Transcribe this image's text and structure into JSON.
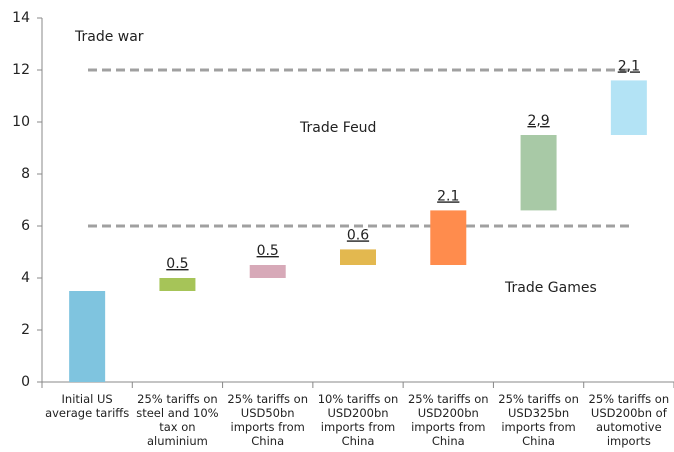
{
  "chart_data": {
    "type": "waterfall",
    "categories": [
      "Initial US average tariffs",
      "25% tariffs on steel and 10% tax on aluminium",
      "25% tariffs on USD50bn imports from China",
      "10% tariffs on USD200bn imports from China",
      "25% tariffs on USD200bn imports from China",
      "25% tariffs on USD325bn imports from China",
      "25% tariffs on USD200bn of automotive imports"
    ],
    "bases": [
      0,
      3.5,
      4.0,
      4.5,
      4.5,
      6.6,
      9.5
    ],
    "values": [
      3.5,
      0.5,
      0.5,
      0.6,
      2.1,
      2.9,
      2.1
    ],
    "value_labels": [
      null,
      "0.5",
      "0.5",
      "0.6",
      "2.1",
      "2,9",
      "2,1"
    ],
    "colors": [
      "#7fc4df",
      "#a6c458",
      "#d7a9b8",
      "#e3b84f",
      "#ff8c4d",
      "#a8c9a6",
      "#b3e3f5"
    ],
    "ylim": [
      0,
      14
    ],
    "yticks": [
      0,
      2,
      4,
      6,
      8,
      10,
      12,
      14
    ],
    "reference_lines": [
      12,
      6
    ],
    "annotations": [
      "Trade war",
      "Trade Feud",
      "Trade Games"
    ]
  }
}
